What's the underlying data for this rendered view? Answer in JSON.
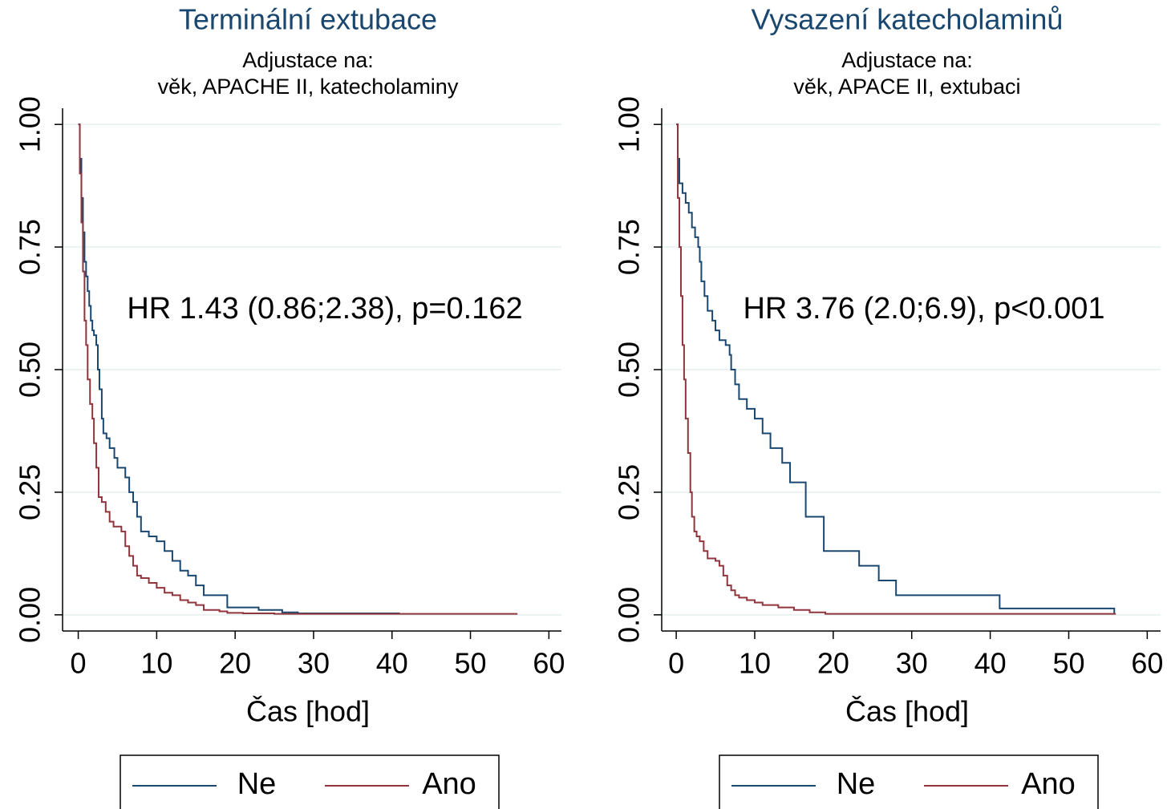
{
  "chart_data": [
    {
      "type": "step",
      "title": "Terminální extubace",
      "subtitle": [
        "Adjustace na:",
        "věk, APACHE II, katecholaminy"
      ],
      "annotation": "HR 1.43 (0.86;2.38), p=0.162",
      "x_label": "Čas [hod]",
      "xlim": [
        -2,
        61.6
      ],
      "xticks": [
        0,
        10,
        20,
        30,
        40,
        50,
        60
      ],
      "ylim": [
        -0.033,
        1.033
      ],
      "yticks": [
        {
          "value": 0,
          "label": "0.00"
        },
        {
          "value": 0.25,
          "label": "0.25"
        },
        {
          "value": 0.5,
          "label": "0.50"
        },
        {
          "value": 0.75,
          "label": "0.75"
        },
        {
          "value": 1,
          "label": "1.00"
        }
      ],
      "grid": true,
      "series": [
        {
          "name": "Ne",
          "color": "#1a476f",
          "x": [
            0,
            0.2,
            0.4,
            0.6,
            0.8,
            1.0,
            1.2,
            1.4,
            1.6,
            1.8,
            2.0,
            2.3,
            2.5,
            2.7,
            3.0,
            3.2,
            3.6,
            4.0,
            4.6,
            5.0,
            6.0,
            6.5,
            7.0,
            7.5,
            8.0,
            9.0,
            10,
            11,
            12,
            13,
            14,
            15,
            16,
            19,
            23,
            26,
            28,
            41
          ],
          "values": [
            1.0,
            0.93,
            0.85,
            0.78,
            0.72,
            0.69,
            0.66,
            0.63,
            0.6,
            0.58,
            0.57,
            0.55,
            0.5,
            0.46,
            0.4,
            0.37,
            0.36,
            0.34,
            0.32,
            0.3,
            0.28,
            0.25,
            0.23,
            0.2,
            0.17,
            0.16,
            0.15,
            0.13,
            0.11,
            0.09,
            0.08,
            0.06,
            0.04,
            0.015,
            0.01,
            0.005,
            0.003,
            0.003
          ]
        },
        {
          "name": "Ano",
          "color": "#90353b",
          "x": [
            0,
            0.2,
            0.4,
            0.6,
            0.8,
            1.0,
            1.2,
            1.5,
            1.8,
            2.0,
            2.3,
            2.6,
            3.0,
            3.5,
            4.0,
            4.5,
            5.5,
            6.0,
            6.5,
            7,
            7.5,
            8,
            9,
            10,
            11,
            12,
            13,
            14,
            15,
            16,
            18,
            19,
            21,
            25,
            56
          ],
          "values": [
            1.0,
            0.9,
            0.8,
            0.7,
            0.6,
            0.55,
            0.48,
            0.43,
            0.4,
            0.35,
            0.3,
            0.24,
            0.23,
            0.21,
            0.19,
            0.18,
            0.17,
            0.14,
            0.12,
            0.1,
            0.08,
            0.075,
            0.065,
            0.055,
            0.045,
            0.04,
            0.03,
            0.025,
            0.02,
            0.01,
            0.007,
            0.004,
            0.003,
            0.002,
            0.002
          ]
        }
      ]
    },
    {
      "type": "step",
      "title": "Vysazení katecholaminů",
      "subtitle": [
        "Adjustace na:",
        "věk, APACE II, extubaci"
      ],
      "annotation": "HR 3.76 (2.0;6.9), p<0.001",
      "x_label": "Čas [hod]",
      "xlim": [
        -1.85,
        61.7
      ],
      "xticks": [
        0,
        10,
        20,
        30,
        40,
        50,
        60
      ],
      "ylim": [
        -0.033,
        1.033
      ],
      "yticks": [
        {
          "value": 0,
          "label": "0.00"
        },
        {
          "value": 0.25,
          "label": "0.25"
        },
        {
          "value": 0.5,
          "label": "0.50"
        },
        {
          "value": 0.75,
          "label": "0.75"
        },
        {
          "value": 1,
          "label": "1.00"
        }
      ],
      "grid": true,
      "series": [
        {
          "name": "Ne",
          "color": "#1a476f",
          "x": [
            0,
            0.2,
            0.4,
            0.8,
            1.2,
            1.6,
            2.0,
            2.4,
            2.8,
            3.0,
            3.2,
            3.6,
            4.0,
            4.6,
            5,
            5.5,
            6.3,
            6.8,
            7,
            7.5,
            8,
            9,
            10,
            11,
            12,
            13.5,
            14.5,
            16.5,
            18.8,
            23.3,
            25.8,
            28,
            41.2,
            55.8
          ],
          "values": [
            1.0,
            0.93,
            0.88,
            0.86,
            0.84,
            0.82,
            0.79,
            0.77,
            0.75,
            0.72,
            0.68,
            0.65,
            0.62,
            0.6,
            0.58,
            0.56,
            0.55,
            0.53,
            0.5,
            0.47,
            0.44,
            0.42,
            0.4,
            0.37,
            0.34,
            0.31,
            0.27,
            0.2,
            0.13,
            0.1,
            0.07,
            0.04,
            0.013,
            0.003
          ]
        },
        {
          "name": "Ano",
          "color": "#90353b",
          "x": [
            0,
            0.2,
            0.4,
            0.6,
            0.8,
            1.0,
            1.2,
            1.5,
            1.8,
            2.0,
            2.3,
            2.6,
            3.0,
            3.5,
            4,
            5,
            5.5,
            6,
            6.5,
            7,
            7.5,
            8,
            9,
            10,
            11,
            13,
            15,
            17,
            19,
            56
          ],
          "values": [
            1.0,
            0.85,
            0.75,
            0.65,
            0.55,
            0.48,
            0.4,
            0.33,
            0.25,
            0.2,
            0.17,
            0.16,
            0.15,
            0.13,
            0.115,
            0.11,
            0.1,
            0.08,
            0.06,
            0.05,
            0.04,
            0.035,
            0.03,
            0.025,
            0.02,
            0.015,
            0.01,
            0.005,
            0.002,
            0.002
          ]
        }
      ]
    }
  ]
}
